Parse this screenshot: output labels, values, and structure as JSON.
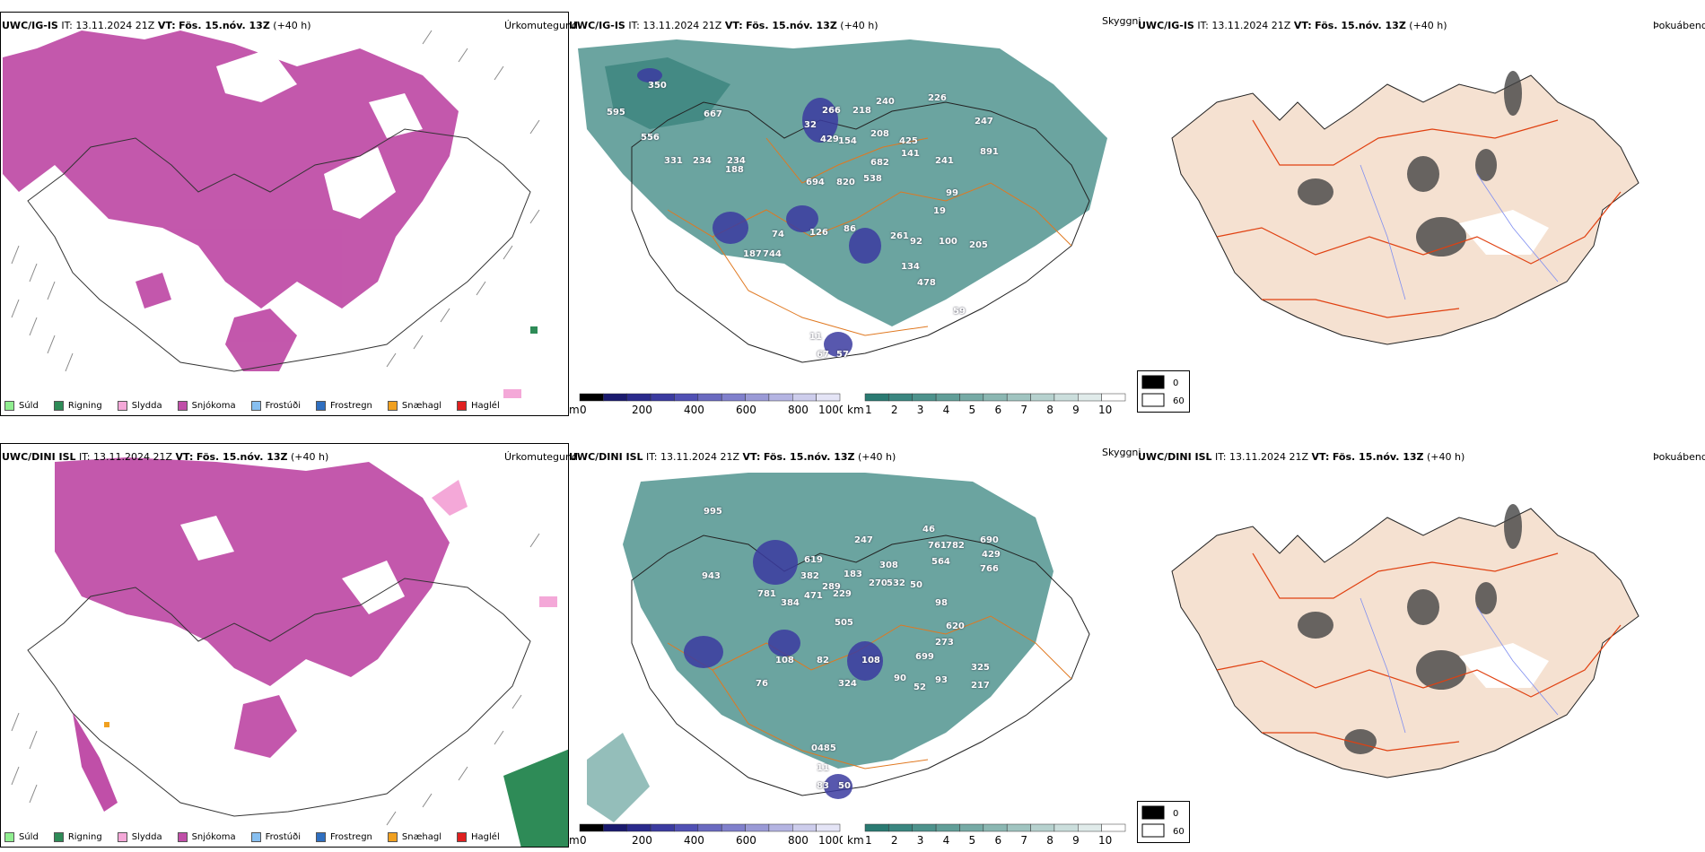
{
  "rows": [
    {
      "model": "UWC/IG-IS",
      "it_label": "IT:",
      "it": "13.11.2024 21Z",
      "vt_label": "VT:",
      "vt": "Fös. 15.nóv. 13Z",
      "lead": "(+40 h)",
      "precip_title": "Úrkomutegund",
      "cloud_title": "Skyggni",
      "fog_title": "Þokuábendi",
      "cloud_labels": [
        "350",
        "595",
        "667",
        "556",
        "32",
        "266",
        "218",
        "240",
        "226",
        "247",
        "429",
        "154",
        "208",
        "425",
        "891",
        "331",
        "234",
        "234",
        "188",
        "682",
        "141",
        "241",
        "694",
        "820",
        "538",
        "19",
        "99",
        "86",
        "126",
        "74",
        "261",
        "92",
        "100",
        "205",
        "187",
        "744",
        "134",
        "478",
        "59",
        "11",
        "67",
        "57"
      ]
    },
    {
      "model": "UWC/DINI ISL",
      "it_label": "IT:",
      "it": "13.11.2024 21Z",
      "vt_label": "VT:",
      "vt": "Fös. 15.nóv. 13Z",
      "lead": "(+40 h)",
      "precip_title": "Úrkomutegund",
      "cloud_title": "Skyggni",
      "fog_title": "Þokuábendi",
      "cloud_labels": [
        "995",
        "619",
        "247",
        "46",
        "761",
        "782",
        "690",
        "429",
        "943",
        "382",
        "183",
        "308",
        "270",
        "564",
        "766",
        "781",
        "384",
        "471",
        "229",
        "289",
        "532",
        "50",
        "98",
        "505",
        "620",
        "273",
        "108",
        "82",
        "108",
        "699",
        "325",
        "76",
        "324",
        "90",
        "52",
        "93",
        "217",
        "0485",
        "11",
        "83",
        "50"
      ]
    }
  ],
  "legend": [
    {
      "label": "Súld",
      "color": "#90ee90"
    },
    {
      "label": "Rigning",
      "color": "#2e8b57"
    },
    {
      "label": "Slydda",
      "color": "#f4a8d8"
    },
    {
      "label": "Snjókoma",
      "color": "#c04fa8"
    },
    {
      "label": "Frostúði",
      "color": "#87bff0"
    },
    {
      "label": "Frostregn",
      "color": "#2f6fc0"
    },
    {
      "label": "Snæhagl",
      "color": "#f0a020"
    },
    {
      "label": "Haglél",
      "color": "#e02020"
    }
  ],
  "colorbar_base": {
    "unit": "m",
    "ticks": [
      "0",
      "200",
      "400",
      "600",
      "800",
      "1000"
    ],
    "colors": [
      "#000000",
      "#1a1a6e",
      "#2a2a8c",
      "#3b3ba0",
      "#5050b4",
      "#6a6ac0",
      "#8080cc",
      "#9a9ad6",
      "#b4b4e2",
      "#cdcdec",
      "#e4e4f6"
    ]
  },
  "colorbar_vis": {
    "unit": "km",
    "ticks": [
      "1",
      "2",
      "3",
      "4",
      "5",
      "6",
      "7",
      "8",
      "9",
      "10"
    ],
    "colors": [
      "#2a7a72",
      "#3a8680",
      "#4d928c",
      "#619e98",
      "#76aaa5",
      "#8bb7b2",
      "#a0c4c0",
      "#b6d1ce",
      "#cbdedc",
      "#e0ebea",
      "#ffffff"
    ]
  },
  "fog_legend": {
    "values": [
      "0",
      "60"
    ],
    "colors": [
      "#000000",
      "#ffffff"
    ]
  }
}
